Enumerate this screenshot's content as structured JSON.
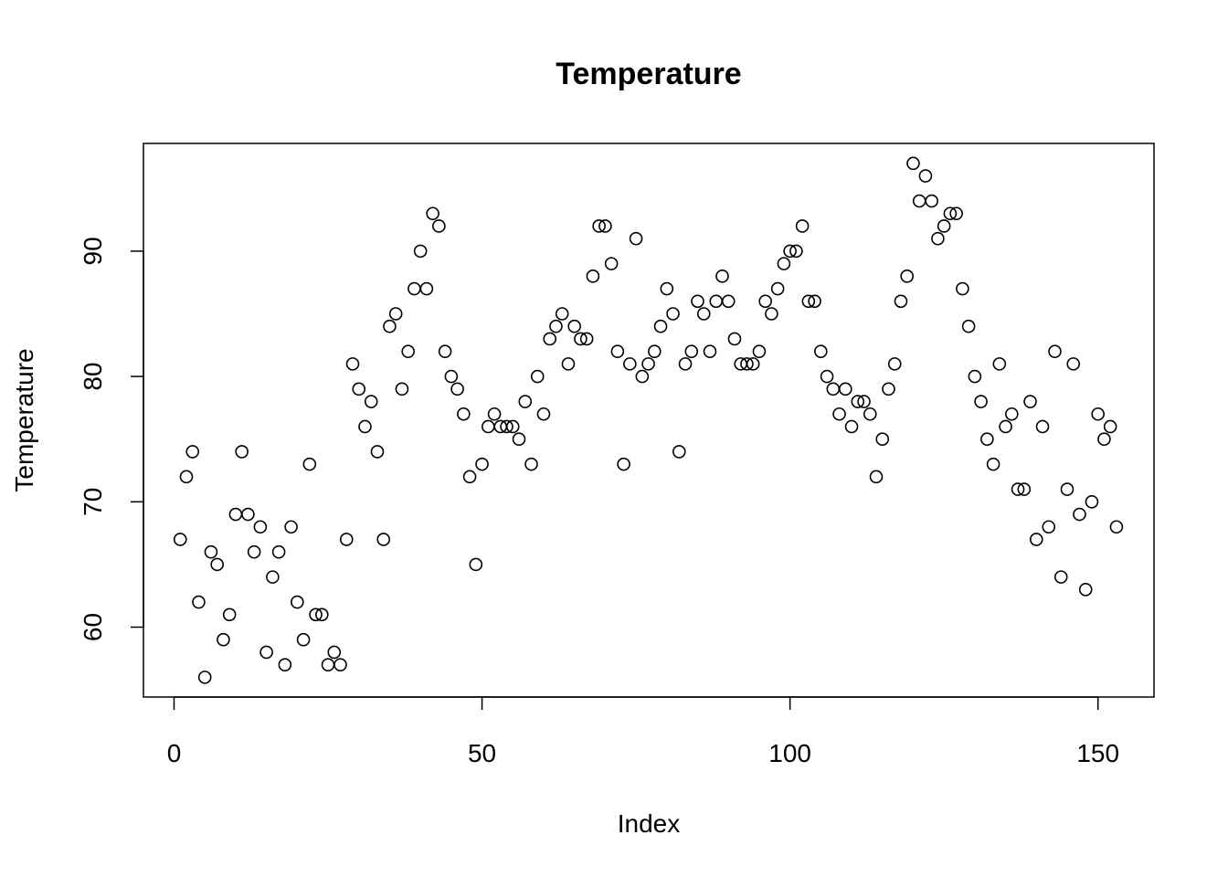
{
  "chart_data": {
    "type": "scatter",
    "title": "Temperature",
    "xlabel": "Index",
    "ylabel": "Temperature",
    "xlim": [
      0,
      153
    ],
    "ylim": [
      56,
      97
    ],
    "xticks": [
      0,
      50,
      100,
      150
    ],
    "yticks": [
      60,
      70,
      80,
      90
    ],
    "grid": false,
    "marker": "open-circle",
    "series": [
      {
        "x": [
          1,
          2,
          3,
          4,
          5,
          6,
          7,
          8,
          9,
          10,
          11,
          12,
          13,
          14,
          15,
          16,
          17,
          18,
          19,
          20,
          21,
          22,
          23,
          24,
          25,
          26,
          27,
          28,
          29,
          30,
          31,
          32,
          33,
          34,
          35,
          36,
          37,
          38,
          39,
          40,
          41,
          42,
          43,
          44,
          45,
          46,
          47,
          48,
          49,
          50,
          51,
          52,
          53,
          54,
          55,
          56,
          57,
          58,
          59,
          60,
          61,
          62,
          63,
          64,
          65,
          66,
          67,
          68,
          69,
          70,
          71,
          72,
          73,
          74,
          75,
          76,
          77,
          78,
          79,
          80,
          81,
          82,
          83,
          84,
          85,
          86,
          87,
          88,
          89,
          90,
          91,
          92,
          93,
          94,
          95,
          96,
          97,
          98,
          99,
          100,
          101,
          102,
          103,
          104,
          105,
          106,
          107,
          108,
          109,
          110,
          111,
          112,
          113,
          114,
          115,
          116,
          117,
          118,
          119,
          120,
          121,
          122,
          123,
          124,
          125,
          126,
          127,
          128,
          129,
          130,
          131,
          132,
          133,
          134,
          135,
          136,
          137,
          138,
          139,
          140,
          141,
          142,
          143,
          144,
          145,
          146,
          147,
          148,
          149,
          150,
          151,
          152,
          153
        ],
        "y": [
          67,
          72,
          74,
          62,
          56,
          66,
          65,
          59,
          61,
          69,
          74,
          69,
          66,
          68,
          58,
          64,
          66,
          57,
          68,
          62,
          59,
          73,
          61,
          61,
          57,
          58,
          57,
          67,
          81,
          79,
          76,
          78,
          74,
          67,
          84,
          85,
          79,
          82,
          87,
          90,
          87,
          93,
          92,
          82,
          80,
          79,
          77,
          72,
          65,
          73,
          76,
          77,
          76,
          76,
          76,
          75,
          78,
          73,
          80,
          77,
          83,
          84,
          85,
          81,
          84,
          83,
          83,
          88,
          92,
          92,
          89,
          82,
          73,
          81,
          91,
          80,
          81,
          82,
          84,
          87,
          85,
          74,
          81,
          82,
          86,
          85,
          82,
          86,
          88,
          86,
          83,
          81,
          81,
          81,
          82,
          86,
          85,
          87,
          89,
          90,
          90,
          92,
          86,
          86,
          82,
          80,
          79,
          77,
          79,
          76,
          78,
          78,
          77,
          72,
          75,
          79,
          81,
          86,
          88,
          97,
          94,
          96,
          94,
          91,
          92,
          93,
          93,
          87,
          84,
          80,
          78,
          75,
          73,
          81,
          76,
          77,
          71,
          71,
          78,
          67,
          76,
          68,
          82,
          64,
          71,
          81,
          69,
          63,
          70,
          77,
          75,
          76,
          68
        ]
      }
    ]
  }
}
